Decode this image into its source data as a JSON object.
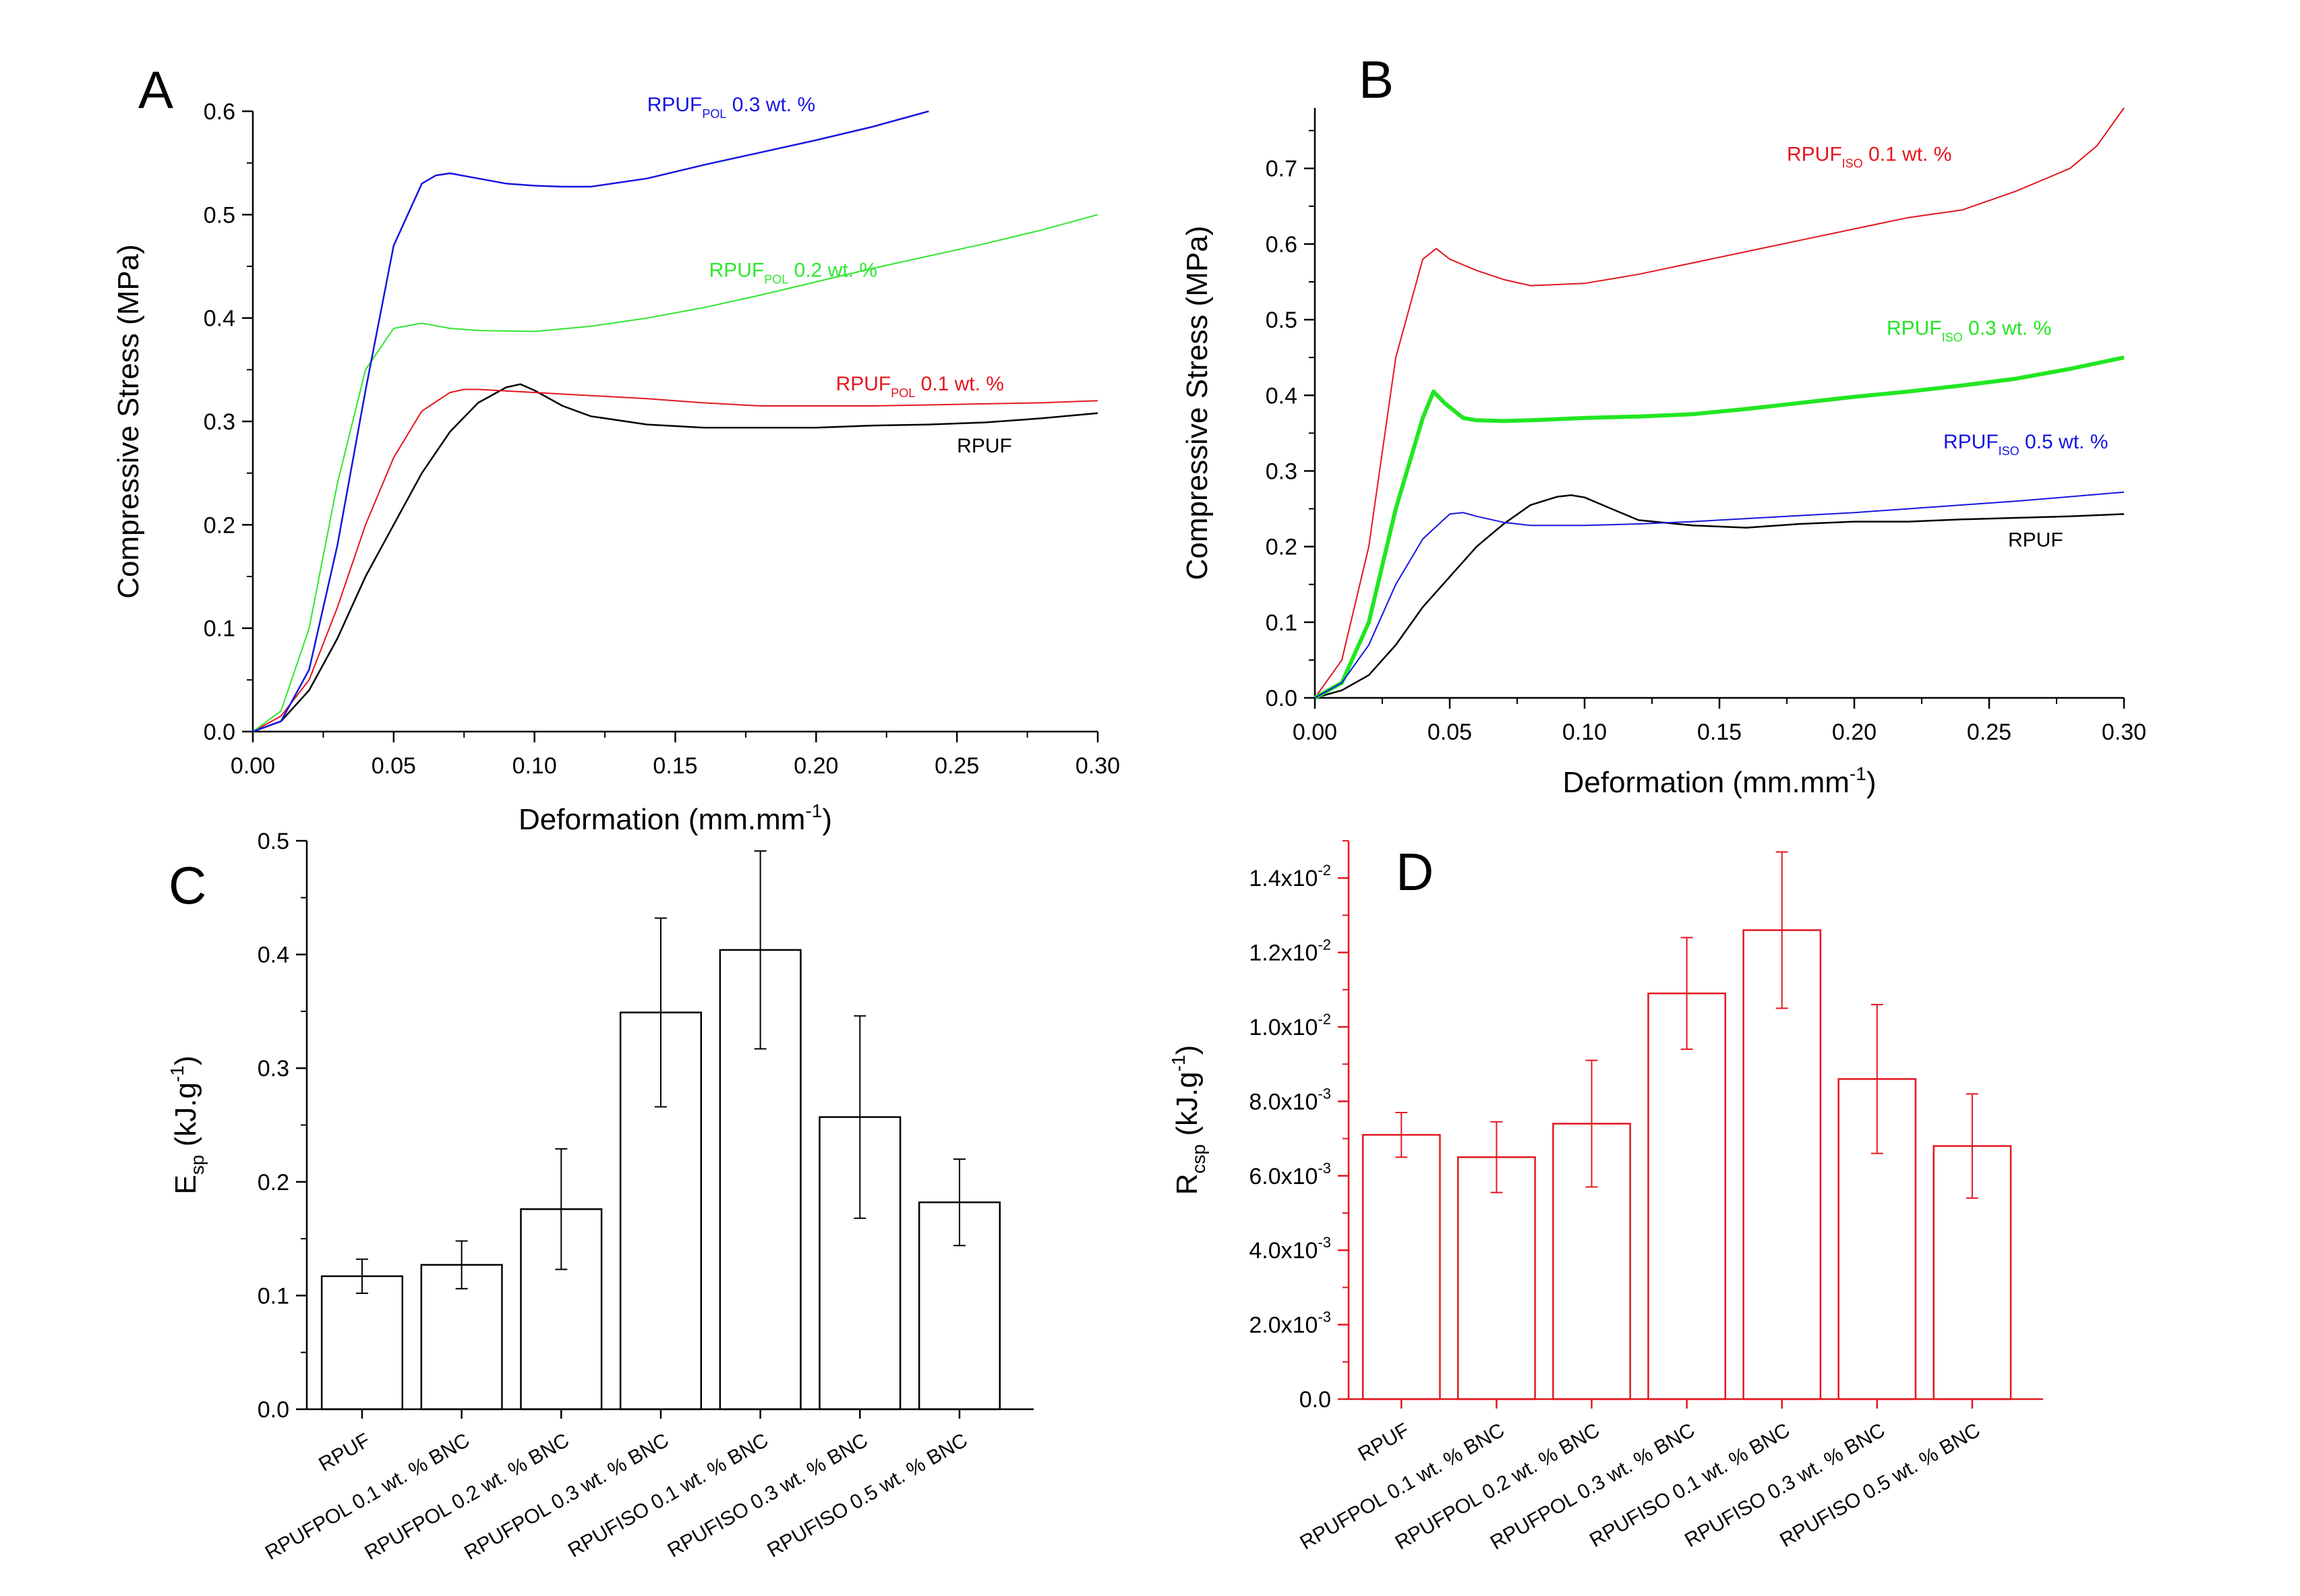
{
  "chart_data": [
    {
      "panel": "A",
      "type": "line",
      "xlabel": "Deformation (mm.mm",
      "xlabel_sup": "-1",
      "xlabel_end": ")",
      "ylabel": "Compressive Stress (MPa)",
      "xlim": [
        0,
        0.3
      ],
      "ylim": [
        0,
        0.6
      ],
      "xticks": [
        0.0,
        0.05,
        0.1,
        0.15,
        0.2,
        0.25,
        0.3
      ],
      "xtick_labels": [
        "0.00",
        "0.05",
        "0.10",
        "0.15",
        "0.20",
        "0.25",
        "0.30"
      ],
      "yticks": [
        0.0,
        0.1,
        0.2,
        0.3,
        0.4,
        0.5,
        0.6
      ],
      "ytick_labels": [
        "0.0",
        "0.1",
        "0.2",
        "0.3",
        "0.4",
        "0.5",
        "0.6"
      ],
      "series": [
        {
          "name": "RPUF",
          "label_main": "RPUF",
          "label_sub": "",
          "label_tail": "",
          "color": "#000000",
          "width": 2.5,
          "label_at": [
            0.25,
            0.27
          ],
          "x": [
            0,
            0.01,
            0.02,
            0.03,
            0.04,
            0.05,
            0.06,
            0.07,
            0.08,
            0.09,
            0.095,
            0.1,
            0.11,
            0.12,
            0.14,
            0.16,
            0.18,
            0.2,
            0.22,
            0.24,
            0.26,
            0.28,
            0.3
          ],
          "y": [
            0,
            0.01,
            0.04,
            0.09,
            0.15,
            0.2,
            0.25,
            0.29,
            0.318,
            0.333,
            0.336,
            0.33,
            0.315,
            0.305,
            0.297,
            0.294,
            0.294,
            0.294,
            0.296,
            0.297,
            0.299,
            0.303,
            0.308
          ]
        },
        {
          "name": "RPUF POL 0.1 wt. %",
          "label_main": "RPUF",
          "label_sub": "POL",
          "label_tail": " 0.1 wt. %",
          "color": "#e3161f",
          "width": 2,
          "label_at": [
            0.207,
            0.33
          ],
          "x": [
            0,
            0.01,
            0.02,
            0.03,
            0.04,
            0.05,
            0.06,
            0.07,
            0.075,
            0.08,
            0.1,
            0.12,
            0.14,
            0.16,
            0.18,
            0.2,
            0.22,
            0.24,
            0.26,
            0.28,
            0.3
          ],
          "y": [
            0,
            0.015,
            0.05,
            0.12,
            0.2,
            0.265,
            0.31,
            0.328,
            0.331,
            0.331,
            0.328,
            0.325,
            0.322,
            0.318,
            0.315,
            0.315,
            0.315,
            0.316,
            0.317,
            0.318,
            0.32
          ]
        },
        {
          "name": "RPUF POL 0.2 wt. %",
          "label_main": "RPUF",
          "label_sub": "POL",
          "label_tail": " 0.2 wt. %",
          "color": "#2fe62f",
          "width": 2,
          "label_at": [
            0.162,
            0.44
          ],
          "x": [
            0,
            0.01,
            0.02,
            0.03,
            0.04,
            0.05,
            0.06,
            0.07,
            0.08,
            0.1,
            0.12,
            0.14,
            0.16,
            0.18,
            0.2,
            0.22,
            0.24,
            0.26,
            0.28,
            0.3
          ],
          "y": [
            0,
            0.02,
            0.1,
            0.24,
            0.35,
            0.39,
            0.395,
            0.39,
            0.388,
            0.387,
            0.392,
            0.4,
            0.41,
            0.422,
            0.435,
            0.448,
            0.46,
            0.472,
            0.485,
            0.5
          ]
        },
        {
          "name": "RPUF POL 0.3 wt. %",
          "label_main": "RPUF",
          "label_sub": "POL",
          "label_tail": " 0.3 wt. %",
          "color": "#1515e0",
          "width": 2.5,
          "label_at": [
            0.14,
            0.6
          ],
          "x": [
            0,
            0.01,
            0.02,
            0.03,
            0.04,
            0.05,
            0.06,
            0.065,
            0.07,
            0.08,
            0.09,
            0.1,
            0.11,
            0.12,
            0.14,
            0.16,
            0.18,
            0.2,
            0.22,
            0.24
          ],
          "y": [
            0,
            0.01,
            0.06,
            0.18,
            0.33,
            0.47,
            0.53,
            0.538,
            0.54,
            0.535,
            0.53,
            0.528,
            0.527,
            0.527,
            0.535,
            0.548,
            0.56,
            0.572,
            0.585,
            0.6
          ]
        }
      ]
    },
    {
      "panel": "B",
      "type": "line",
      "xlabel": "Deformation (mm.mm",
      "xlabel_sup": "-1",
      "xlabel_end": ")",
      "ylabel": "Compressive Stress (MPa)",
      "xlim": [
        0,
        0.3
      ],
      "ylim": [
        0,
        0.78
      ],
      "xticks": [
        0.0,
        0.05,
        0.1,
        0.15,
        0.2,
        0.25,
        0.3
      ],
      "xtick_labels": [
        "0.00",
        "0.05",
        "0.10",
        "0.15",
        "0.20",
        "0.25",
        "0.30"
      ],
      "yticks": [
        0.0,
        0.1,
        0.2,
        0.3,
        0.4,
        0.5,
        0.6,
        0.7
      ],
      "ytick_labels": [
        "0.0",
        "0.1",
        "0.2",
        "0.3",
        "0.4",
        "0.5",
        "0.6",
        "0.7"
      ],
      "series": [
        {
          "name": "RPUF",
          "label_main": "RPUF",
          "label_sub": "",
          "label_tail": "",
          "color": "#000000",
          "width": 2.5,
          "label_at": [
            0.257,
            0.2
          ],
          "x": [
            0,
            0.01,
            0.02,
            0.03,
            0.04,
            0.05,
            0.06,
            0.07,
            0.08,
            0.09,
            0.095,
            0.1,
            0.11,
            0.12,
            0.14,
            0.16,
            0.18,
            0.2,
            0.22,
            0.24,
            0.26,
            0.28,
            0.3
          ],
          "y": [
            0,
            0.01,
            0.03,
            0.07,
            0.12,
            0.16,
            0.2,
            0.23,
            0.255,
            0.266,
            0.268,
            0.265,
            0.25,
            0.235,
            0.228,
            0.225,
            0.23,
            0.233,
            0.233,
            0.236,
            0.238,
            0.24,
            0.243
          ]
        },
        {
          "name": "RPUF ISO 0.1 wt. %",
          "label_main": "RPUF",
          "label_sub": "ISO",
          "label_tail": " 0.1 wt. %",
          "color": "#e3161f",
          "width": 2,
          "label_at": [
            0.175,
            0.71
          ],
          "x": [
            0,
            0.01,
            0.02,
            0.03,
            0.04,
            0.045,
            0.05,
            0.06,
            0.07,
            0.08,
            0.1,
            0.12,
            0.14,
            0.16,
            0.18,
            0.2,
            0.22,
            0.24,
            0.26,
            0.28,
            0.29,
            0.3
          ],
          "y": [
            0,
            0.05,
            0.2,
            0.45,
            0.58,
            0.594,
            0.58,
            0.565,
            0.553,
            0.545,
            0.548,
            0.56,
            0.575,
            0.59,
            0.605,
            0.62,
            0.635,
            0.645,
            0.67,
            0.7,
            0.73,
            0.78
          ]
        },
        {
          "name": "RPUF ISO 0.3 wt. %",
          "label_main": "RPUF",
          "label_sub": "ISO",
          "label_tail": " 0.3 wt. %",
          "color": "#22e622",
          "width": 6,
          "label_at": [
            0.212,
            0.48
          ],
          "x": [
            0,
            0.01,
            0.02,
            0.03,
            0.04,
            0.044,
            0.048,
            0.055,
            0.06,
            0.07,
            0.08,
            0.1,
            0.12,
            0.14,
            0.16,
            0.18,
            0.2,
            0.22,
            0.24,
            0.26,
            0.28,
            0.3
          ],
          "y": [
            0,
            0.02,
            0.1,
            0.25,
            0.37,
            0.405,
            0.39,
            0.37,
            0.367,
            0.366,
            0.367,
            0.37,
            0.372,
            0.375,
            0.382,
            0.39,
            0.398,
            0.405,
            0.413,
            0.422,
            0.435,
            0.45
          ]
        },
        {
          "name": "RPUF ISO 0.5 wt. %",
          "label_main": "RPUF",
          "label_sub": "ISO",
          "label_tail": " 0.5 wt. %",
          "color": "#1515e0",
          "width": 2,
          "label_at": [
            0.233,
            0.33
          ],
          "x": [
            0,
            0.01,
            0.02,
            0.03,
            0.04,
            0.05,
            0.055,
            0.06,
            0.07,
            0.08,
            0.1,
            0.12,
            0.14,
            0.16,
            0.18,
            0.2,
            0.22,
            0.24,
            0.26,
            0.28,
            0.3
          ],
          "y": [
            0,
            0.02,
            0.07,
            0.15,
            0.21,
            0.243,
            0.245,
            0.24,
            0.232,
            0.228,
            0.228,
            0.23,
            0.233,
            0.237,
            0.241,
            0.245,
            0.25,
            0.255,
            0.26,
            0.266,
            0.272
          ]
        }
      ]
    },
    {
      "panel": "C",
      "type": "bar",
      "color": "#000000",
      "ylabel_main": "E",
      "ylabel_sub": "sp",
      "ylabel_tail": " (kJ.g",
      "ylabel_sup": "-1",
      "ylabel_end": ")",
      "ylim": [
        0,
        0.5
      ],
      "yticks": [
        0.0,
        0.1,
        0.2,
        0.3,
        0.4,
        0.5
      ],
      "ytick_labels": [
        "0.0",
        "0.1",
        "0.2",
        "0.3",
        "0.4",
        "0.5"
      ],
      "categories": [
        "RPUF",
        "RPUFPOL 0.1 wt. % BNC",
        "RPUFPOL 0.2 wt. % BNC",
        "RPUFPOL 0.3 wt. % BNC",
        "RPUFISO 0.1 wt. % BNC",
        "RPUFISO 0.3 wt. % BNC",
        "RPUFISO 0.5 wt. % BNC"
      ],
      "values": [
        0.117,
        0.127,
        0.176,
        0.349,
        0.404,
        0.257,
        0.182
      ],
      "errors": [
        0.015,
        0.021,
        0.053,
        0.083,
        0.087,
        0.089,
        0.038
      ]
    },
    {
      "panel": "D",
      "type": "bar",
      "color": "#e3161f",
      "ylabel_main": "R",
      "ylabel_sub": "csp",
      "ylabel_tail": " (kJ.g",
      "ylabel_sup": "-1",
      "ylabel_end": ")",
      "ylim": [
        0,
        0.015
      ],
      "yticks": [
        0.0,
        0.002,
        0.004,
        0.006,
        0.008,
        0.01,
        0.012,
        0.014
      ],
      "ytick_base": [
        "0.0",
        "2.0x10",
        "4.0x10",
        "6.0x10",
        "8.0x10",
        "1.0x10",
        "1.2x10",
        "1.4x10"
      ],
      "ytick_exp": [
        "",
        "-3",
        "-3",
        "-3",
        "-3",
        "-2",
        "-2",
        "-2"
      ],
      "categories": [
        "RPUF",
        "RPUFPOL 0.1 wt. % BNC",
        "RPUFPOL 0.2 wt. % BNC",
        "RPUFPOL 0.3 wt. % BNC",
        "RPUFISO 0.1 wt. % BNC",
        "RPUFISO 0.3 wt. % BNC",
        "RPUFISO 0.5 wt. % BNC"
      ],
      "values": [
        0.0071,
        0.0065,
        0.0074,
        0.0109,
        0.0126,
        0.0086,
        0.0068
      ],
      "errors": [
        0.0006,
        0.00095,
        0.0017,
        0.0015,
        0.0021,
        0.002,
        0.0014
      ]
    }
  ]
}
